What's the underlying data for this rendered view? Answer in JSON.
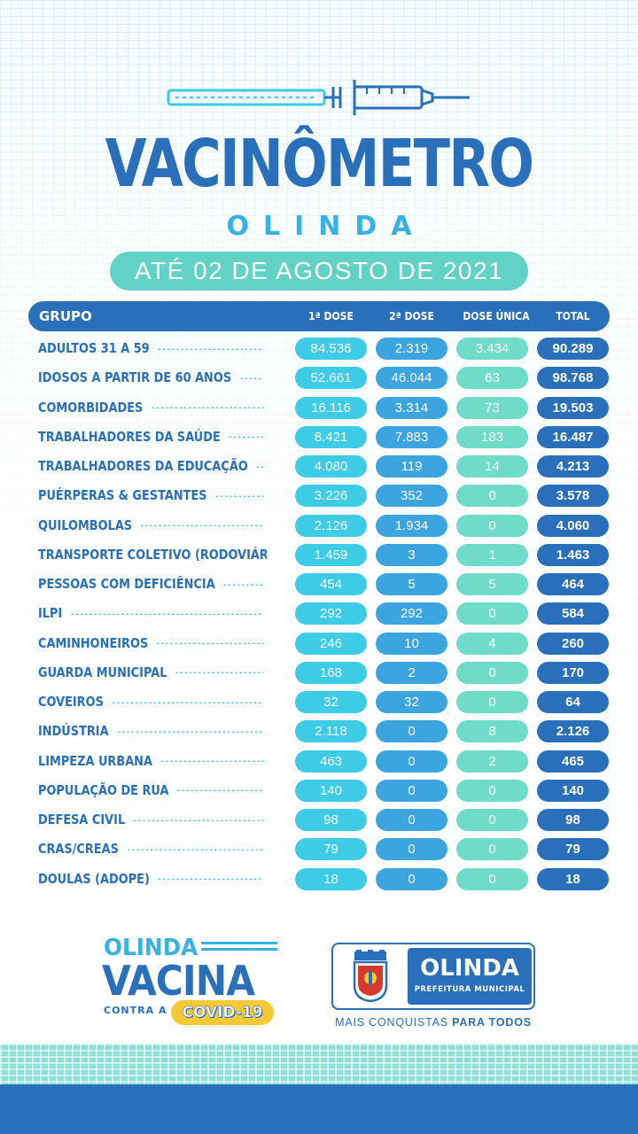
{
  "header": {
    "title": "VACINÔMETRO",
    "subtitle": "OLINDA",
    "date": "ATÉ 02 DE  AGOSTO DE 2021"
  },
  "table": {
    "columns": {
      "grupo": "GRUPO",
      "dose1": "1ª DOSE",
      "dose2": "2ª DOSE",
      "dose_unica": "DOSE ÚNICA",
      "total": "TOTAL"
    },
    "rows": [
      {
        "grupo": "ADULTOS 31 A 59",
        "dose1": "84.536",
        "dose2": "2.319",
        "dose_unica": "3.434",
        "total": "90.289"
      },
      {
        "grupo": "IDOSOS A PARTIR DE 60 ANOS",
        "dose1": "52.661",
        "dose2": "46.044",
        "dose_unica": "63",
        "total": "98.768"
      },
      {
        "grupo": "COMORBIDADES",
        "dose1": "16.116",
        "dose2": "3.314",
        "dose_unica": "73",
        "total": "19.503"
      },
      {
        "grupo": "TRABALHADORES DA SAÚDE",
        "dose1": "8.421",
        "dose2": "7.883",
        "dose_unica": "183",
        "total": "16.487"
      },
      {
        "grupo": "TRABALHADORES DA EDUCAÇÃO",
        "dose1": "4.080",
        "dose2": "119",
        "dose_unica": "14",
        "total": "4.213"
      },
      {
        "grupo": "PUÉRPERAS & GESTANTES",
        "dose1": "3.226",
        "dose2": "352",
        "dose_unica": "0",
        "total": "3.578"
      },
      {
        "grupo": "QUILOMBOLAS",
        "dose1": "2.126",
        "dose2": "1.934",
        "dose_unica": "0",
        "total": "4.060"
      },
      {
        "grupo": "TRANSPORTE COLETIVO (RODOVIÁRIOS)",
        "dose1": "1.459",
        "dose2": "3",
        "dose_unica": "1",
        "total": "1.463"
      },
      {
        "grupo": "PESSOAS COM DEFICIÊNCIA",
        "dose1": "454",
        "dose2": "5",
        "dose_unica": "5",
        "total": "464"
      },
      {
        "grupo": "ILPI",
        "dose1": "292",
        "dose2": "292",
        "dose_unica": "0",
        "total": "584"
      },
      {
        "grupo": "CAMINHONEIROS",
        "dose1": "246",
        "dose2": "10",
        "dose_unica": "4",
        "total": "260"
      },
      {
        "grupo": "GUARDA MUNICIPAL",
        "dose1": "168",
        "dose2": "2",
        "dose_unica": "0",
        "total": "170"
      },
      {
        "grupo": "COVEIROS",
        "dose1": "32",
        "dose2": "32",
        "dose_unica": "0",
        "total": "64"
      },
      {
        "grupo": "INDÚSTRIA",
        "dose1": "2.118",
        "dose2": "0",
        "dose_unica": "8",
        "total": "2.126"
      },
      {
        "grupo": "LIMPEZA URBANA",
        "dose1": "463",
        "dose2": "0",
        "dose_unica": "2",
        "total": "465"
      },
      {
        "grupo": "POPULAÇÃO DE RUA",
        "dose1": "140",
        "dose2": "0",
        "dose_unica": "0",
        "total": "140"
      },
      {
        "grupo": "DEFESA CIVIL",
        "dose1": "98",
        "dose2": "0",
        "dose_unica": "0",
        "total": "98"
      },
      {
        "grupo": "CRAS/CREAS",
        "dose1": "79",
        "dose2": "0",
        "dose_unica": "0",
        "total": "79"
      },
      {
        "grupo": "DOULAS (ADOPE)",
        "dose1": "18",
        "dose2": "0",
        "dose_unica": "0",
        "total": "18"
      }
    ]
  },
  "campaign_logo": {
    "line1": "OLINDA",
    "line2": "VACINA",
    "line3": "CONTRA A",
    "badge": "COVID-19"
  },
  "prefeitura_logo": {
    "name": "OLINDA",
    "sub": "PREFEITURA MUNICIPAL",
    "tagline_regular": "MAIS CONQUISTAS ",
    "tagline_bold": "PARA TODOS"
  },
  "colors": {
    "primary_blue": "#2a6fb9",
    "light_blue": "#38b2e3",
    "cyan": "#3ecbe6",
    "mid_blue": "#3ca4df",
    "teal": "#6fdbc9",
    "yellow": "#f7c934"
  }
}
